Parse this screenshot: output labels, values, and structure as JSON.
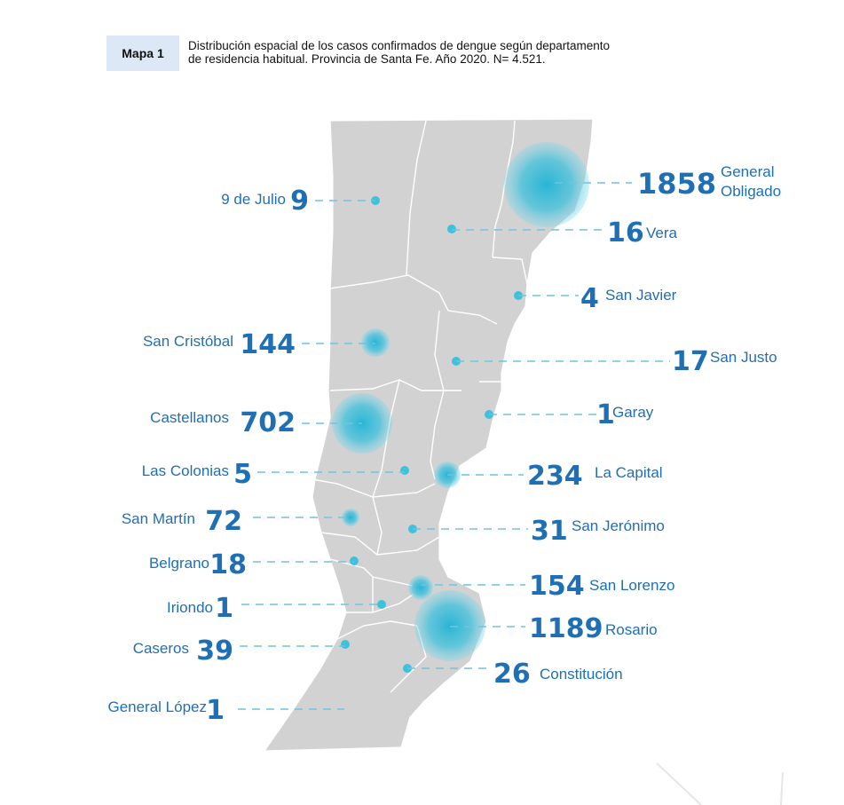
{
  "header": {
    "badge": "Mapa 1",
    "title_line1": "Distribución espacial de los casos confirmados de dengue según departamento",
    "title_line2": "de residencia habitual. Provincia de Santa Fe. Año 2020. N= 4.521."
  },
  "colors": {
    "map_fill": "#d2d2d2",
    "border": "#ffffff",
    "bubble": "#3ec1dc",
    "label": "#1f6fb5"
  },
  "departments": [
    {
      "id": "9-de-julio",
      "name": "9 de Julio",
      "cases": "9"
    },
    {
      "id": "general-obligado",
      "name": "General Obligado",
      "name_line1": "General",
      "name_line2": "Obligado",
      "cases": "1858"
    },
    {
      "id": "vera",
      "name": "Vera",
      "cases": "16"
    },
    {
      "id": "san-javier",
      "name": "San Javier",
      "cases": "4"
    },
    {
      "id": "san-cristobal",
      "name": "San Cristóbal",
      "cases": "144"
    },
    {
      "id": "san-justo",
      "name": "San Justo",
      "cases": "17"
    },
    {
      "id": "castellanos",
      "name": "Castellanos",
      "cases": "702"
    },
    {
      "id": "garay",
      "name": "Garay",
      "cases": "1"
    },
    {
      "id": "las-colonias",
      "name": "Las Colonias",
      "cases": "5"
    },
    {
      "id": "la-capital",
      "name": "La Capital",
      "cases": "234"
    },
    {
      "id": "san-martin",
      "name": "San Martín",
      "cases": "72"
    },
    {
      "id": "san-jeronimo",
      "name": "San Jerónimo",
      "cases": "31"
    },
    {
      "id": "belgrano",
      "name": "Belgrano",
      "cases": "18"
    },
    {
      "id": "san-lorenzo",
      "name": "San Lorenzo",
      "cases": "154"
    },
    {
      "id": "iriondo",
      "name": "Iriondo",
      "cases": "1"
    },
    {
      "id": "rosario",
      "name": "Rosario",
      "cases": "1189"
    },
    {
      "id": "caseros",
      "name": "Caseros",
      "cases": "39"
    },
    {
      "id": "constitucion",
      "name": "Constitución",
      "cases": "26"
    },
    {
      "id": "general-lopez",
      "name": "General López",
      "cases": "1"
    }
  ]
}
